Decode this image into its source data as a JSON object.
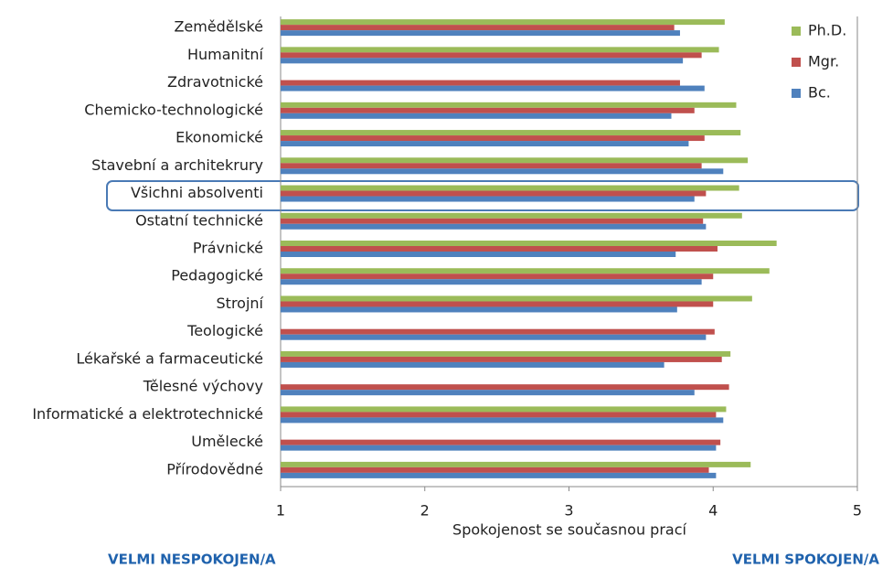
{
  "chart_data": {
    "type": "hbar",
    "categories": [
      "Zemědělské",
      "Humanitní",
      "Zdravotnické",
      "Chemicko-technologické",
      "Ekonomické",
      "Stavební a architekrury",
      "Všichni absolventi",
      "Ostatní technické",
      "Právnické",
      "Pedagogické",
      "Strojní",
      "Teologické",
      "Lékařské a farmaceutické",
      "Tělesné výchovy",
      "Informatické a elektrotechnické",
      "Umělecké",
      "Přírodovědné"
    ],
    "series": [
      {
        "name": "Ph.D.",
        "color": "#9bbb59",
        "values": [
          4.08,
          4.04,
          null,
          4.16,
          4.19,
          4.24,
          4.18,
          4.2,
          4.44,
          4.39,
          4.27,
          null,
          4.12,
          null,
          4.09,
          null,
          4.26
        ]
      },
      {
        "name": "Mgr.",
        "color": "#c0504d",
        "values": [
          3.73,
          3.92,
          3.77,
          3.87,
          3.94,
          3.92,
          3.95,
          3.93,
          4.03,
          4.0,
          4.0,
          4.01,
          4.06,
          4.11,
          4.02,
          4.05,
          3.97
        ]
      },
      {
        "name": "Bc.",
        "color": "#4f81bd",
        "values": [
          3.77,
          3.79,
          3.94,
          3.71,
          3.83,
          4.07,
          3.87,
          3.95,
          3.74,
          3.92,
          3.75,
          3.95,
          3.66,
          3.87,
          4.07,
          4.02,
          4.02
        ]
      }
    ],
    "xlabel": "Spokojenost se současnou prací",
    "xlim": [
      1,
      5
    ],
    "xticks": [
      1,
      2,
      3,
      4,
      5
    ],
    "grid": false,
    "legend": "top-right",
    "annotations": [
      "VELMI NESPOKOJEN/A",
      "VELMI SPOKOJEN/A"
    ]
  }
}
